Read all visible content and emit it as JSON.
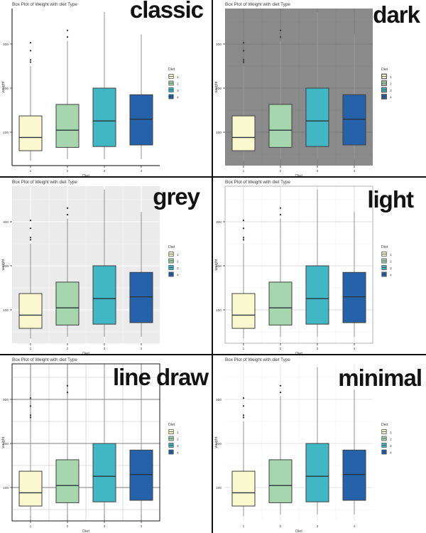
{
  "chart_data": {
    "type": "boxplot",
    "title": "Box Plot of Weight with diet Type",
    "xlabel": "Diet",
    "ylabel": "weight",
    "categories": [
      "1",
      "2",
      "3",
      "4"
    ],
    "y_ticks": [
      100,
      200,
      300
    ],
    "ylim": [
      20,
      385
    ],
    "grid": "theme-dependent",
    "legend": {
      "title": "Diet",
      "position": "right",
      "labels": [
        "1",
        "2",
        "3",
        "4"
      ]
    },
    "series": [
      {
        "name": "1",
        "fill": "#f9f8cf",
        "whisker_low": 35,
        "q1": 58,
        "median": 88,
        "q3": 137,
        "whisker_high": 250,
        "outliers": [
          259,
          264,
          285,
          303
        ]
      },
      {
        "name": "2",
        "fill": "#a6d6ae",
        "whisker_low": 39,
        "q1": 65.5,
        "median": 104.5,
        "q3": 163,
        "whisker_high": 307,
        "outliers": [
          316,
          331
        ]
      },
      {
        "name": "3",
        "fill": "#41b6c4",
        "whisker_low": 39,
        "q1": 67.5,
        "median": 125.5,
        "q3": 200,
        "whisker_high": 373,
        "outliers": []
      },
      {
        "name": "4",
        "fill": "#2562a9",
        "whisker_low": 39,
        "q1": 71,
        "median": 129.5,
        "q3": 185,
        "whisker_high": 322,
        "outliers": []
      }
    ],
    "panels": [
      {
        "label": "classic",
        "theme": {
          "panel_bg": "#ffffff",
          "grid_major": null,
          "grid_minor": null,
          "panel_border": null,
          "axis_lines": "#000000",
          "ticks": true,
          "key_bg": "#ffffff"
        }
      },
      {
        "label": "dark",
        "theme": {
          "panel_bg": "#8a8a8a",
          "grid_major": "#7a7a7a",
          "grid_minor": "#828282",
          "panel_border": null,
          "axis_lines": null,
          "ticks": true,
          "key_bg": "#8a8a8a"
        }
      },
      {
        "label": "grey",
        "theme": {
          "panel_bg": "#ebebeb",
          "grid_major": "#ffffff",
          "grid_minor": "#f6f6f6",
          "panel_border": null,
          "axis_lines": null,
          "ticks": true,
          "key_bg": "#f0f0f0"
        }
      },
      {
        "label": "light",
        "theme": {
          "panel_bg": "#ffffff",
          "grid_major": "#dcdcdc",
          "grid_minor": "#efefef",
          "panel_border": "#b5b5b5",
          "axis_lines": null,
          "ticks": true,
          "key_bg": "#f0f0f0"
        }
      },
      {
        "label": "line draw",
        "theme": {
          "panel_bg": "#ffffff",
          "grid_major": "#7d7d7d",
          "grid_minor": "#bfbfbf",
          "panel_border": "#1a1a1a",
          "axis_lines": null,
          "ticks": true,
          "key_bg": "#ffffff"
        }
      },
      {
        "label": "minimal",
        "theme": {
          "panel_bg": "#ffffff",
          "grid_major": "#e4e4e4",
          "grid_minor": "#f2f2f2",
          "panel_border": null,
          "axis_lines": null,
          "ticks": false,
          "key_bg": "#ffffff"
        }
      }
    ],
    "style": {
      "box_stroke": "#3f3f3f",
      "median_stroke": "#26343c",
      "whisker_stroke": "#9a9a9a",
      "outlier_color": "#3a3a3a",
      "text_color": "#3d3d3d",
      "divider_color": "#101010"
    }
  }
}
